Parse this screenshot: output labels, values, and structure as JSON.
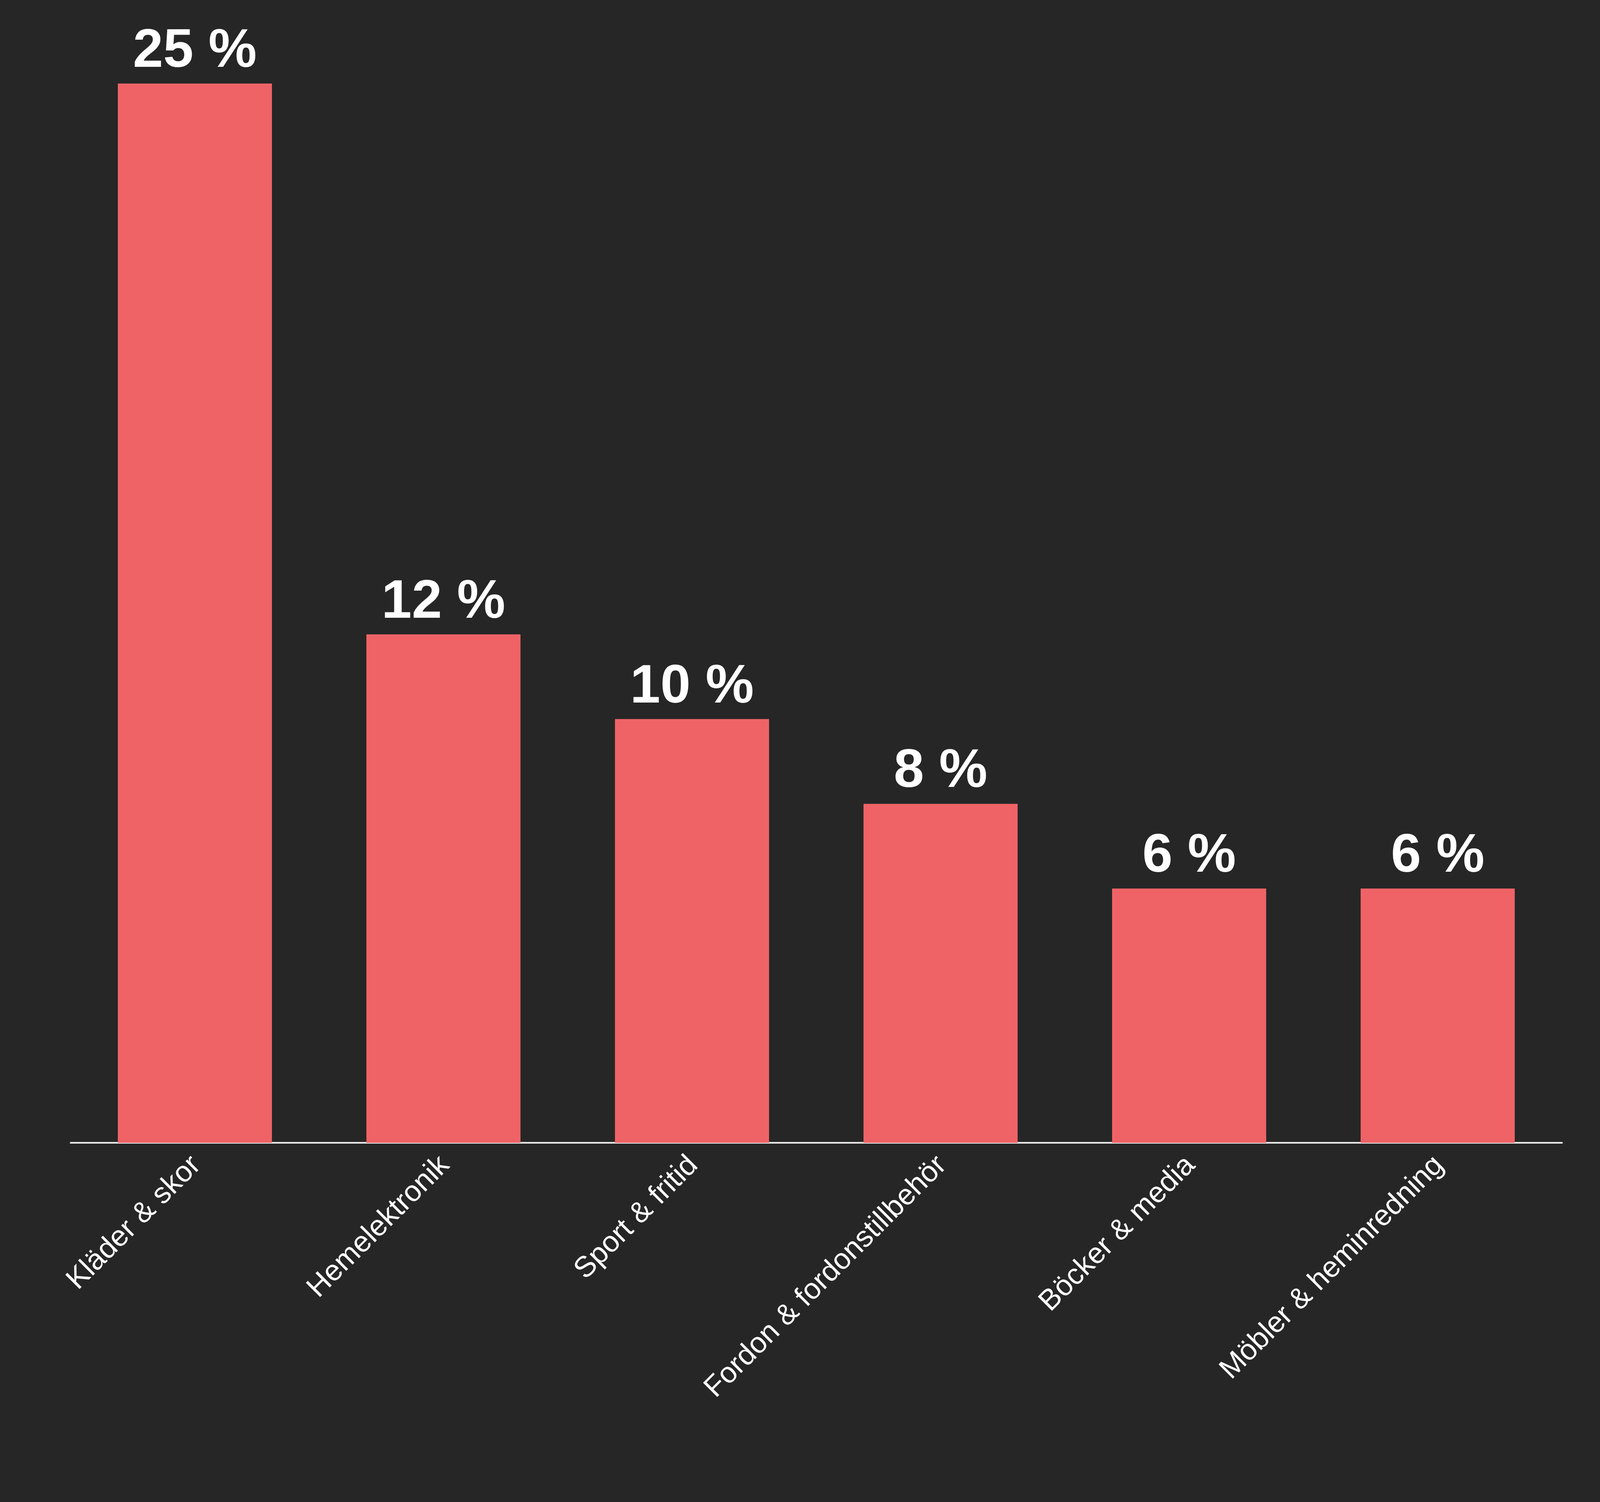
{
  "chart_data": {
    "type": "bar",
    "categories": [
      "Kläder & skor",
      "Hemelektronik",
      "Sport & fritid",
      "Fordon & fordonstillbehör",
      "Böcker & media",
      "Möbler & heminredning"
    ],
    "values": [
      25,
      12,
      10,
      8,
      6,
      6
    ],
    "value_labels": [
      "25 %",
      "12 %",
      "10 %",
      "8 %",
      "6 %",
      "6 %"
    ],
    "color": "#ef6367",
    "ylim": [
      0,
      25
    ],
    "grid": false,
    "data_labels": true,
    "tick_labels": "x"
  }
}
